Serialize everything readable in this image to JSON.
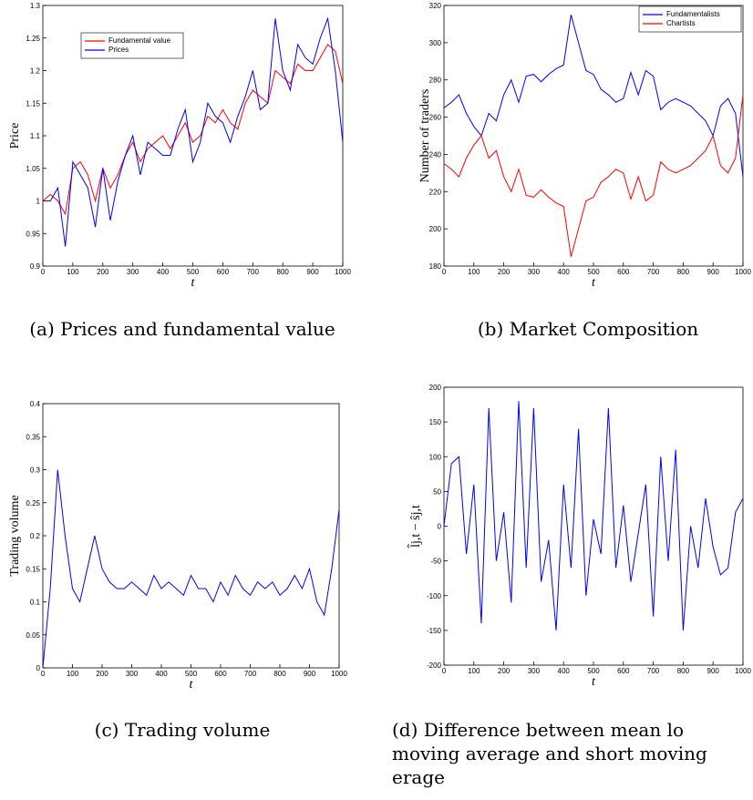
{
  "chart_data": [
    {
      "type": "line",
      "caption": "(a) Prices and fundamental value",
      "xlabel": "t",
      "ylabel": "Price",
      "x": [
        0,
        25,
        50,
        75,
        100,
        125,
        150,
        175,
        200,
        225,
        250,
        275,
        300,
        325,
        350,
        375,
        400,
        425,
        450,
        475,
        500,
        525,
        550,
        575,
        600,
        625,
        650,
        675,
        700,
        725,
        750,
        775,
        800,
        825,
        850,
        875,
        900,
        925,
        950,
        975,
        1000
      ],
      "series": [
        {
          "name": "Fundamental value",
          "color": "#ff0000",
          "values": [
            1.0,
            1.01,
            1.0,
            0.98,
            1.05,
            1.06,
            1.04,
            1.0,
            1.05,
            1.02,
            1.04,
            1.07,
            1.09,
            1.06,
            1.08,
            1.09,
            1.1,
            1.08,
            1.1,
            1.12,
            1.09,
            1.1,
            1.13,
            1.12,
            1.14,
            1.12,
            1.11,
            1.15,
            1.17,
            1.16,
            1.15,
            1.2,
            1.19,
            1.18,
            1.21,
            1.2,
            1.2,
            1.22,
            1.24,
            1.23,
            1.18
          ]
        },
        {
          "name": "Prices",
          "color": "#0000ff",
          "values": [
            1.0,
            1.0,
            1.02,
            0.93,
            1.06,
            1.04,
            1.02,
            0.96,
            1.05,
            0.97,
            1.03,
            1.07,
            1.1,
            1.04,
            1.09,
            1.08,
            1.07,
            1.07,
            1.11,
            1.14,
            1.06,
            1.09,
            1.15,
            1.13,
            1.12,
            1.09,
            1.13,
            1.16,
            1.2,
            1.14,
            1.15,
            1.28,
            1.2,
            1.17,
            1.24,
            1.22,
            1.21,
            1.25,
            1.28,
            1.2,
            1.09
          ]
        }
      ],
      "legend": "upper-left",
      "xlim": [
        0,
        1000
      ],
      "xticks": [
        0,
        100,
        200,
        300,
        400,
        500,
        600,
        700,
        800,
        900,
        1000
      ],
      "ylim": [
        0.9,
        1.3
      ],
      "yticks": [
        0.9,
        0.95,
        1,
        1.05,
        1.1,
        1.15,
        1.2,
        1.25,
        1.3
      ]
    },
    {
      "type": "line",
      "caption": "(b) Market Composition",
      "xlabel": "t",
      "ylabel": "Number of traders",
      "x": [
        0,
        25,
        50,
        75,
        100,
        125,
        150,
        175,
        200,
        225,
        250,
        275,
        300,
        325,
        350,
        375,
        400,
        425,
        450,
        475,
        500,
        525,
        550,
        575,
        600,
        625,
        650,
        675,
        700,
        725,
        750,
        775,
        800,
        825,
        850,
        875,
        900,
        925,
        950,
        975,
        1000
      ],
      "series": [
        {
          "name": "Fundamentalists",
          "color": "#0000ff",
          "values": [
            265,
            268,
            272,
            262,
            255,
            250,
            262,
            258,
            272,
            280,
            268,
            282,
            283,
            279,
            283,
            286,
            288,
            315,
            300,
            285,
            283,
            275,
            272,
            268,
            270,
            284,
            272,
            285,
            282,
            264,
            268,
            270,
            268,
            266,
            262,
            258,
            250,
            266,
            270,
            262,
            228
          ]
        },
        {
          "name": "Chartists",
          "color": "#ff0000",
          "values": [
            235,
            232,
            228,
            238,
            245,
            250,
            238,
            242,
            228,
            220,
            232,
            218,
            217,
            221,
            217,
            214,
            212,
            185,
            200,
            215,
            217,
            225,
            228,
            232,
            230,
            216,
            228,
            215,
            218,
            236,
            232,
            230,
            232,
            234,
            238,
            242,
            250,
            234,
            230,
            238,
            272
          ]
        }
      ],
      "legend": "upper-right",
      "xlim": [
        0,
        1000
      ],
      "xticks": [
        0,
        100,
        200,
        300,
        400,
        500,
        600,
        700,
        800,
        900,
        1000
      ],
      "ylim": [
        180,
        320
      ],
      "yticks": [
        180,
        200,
        220,
        240,
        260,
        280,
        300,
        320
      ]
    },
    {
      "type": "line",
      "caption": "(c) Trading volume",
      "xlabel": "t",
      "ylabel": "Trading volume",
      "x": [
        0,
        25,
        50,
        75,
        100,
        125,
        150,
        175,
        200,
        225,
        250,
        275,
        300,
        325,
        350,
        375,
        400,
        425,
        450,
        475,
        500,
        525,
        550,
        575,
        600,
        625,
        650,
        675,
        700,
        725,
        750,
        775,
        800,
        825,
        850,
        875,
        900,
        925,
        950,
        975,
        1000
      ],
      "series": [
        {
          "color": "#0000ff",
          "values": [
            0.0,
            0.12,
            0.3,
            0.2,
            0.12,
            0.1,
            0.15,
            0.2,
            0.15,
            0.13,
            0.12,
            0.12,
            0.13,
            0.12,
            0.11,
            0.14,
            0.12,
            0.13,
            0.12,
            0.11,
            0.14,
            0.12,
            0.12,
            0.1,
            0.13,
            0.11,
            0.14,
            0.12,
            0.11,
            0.13,
            0.12,
            0.13,
            0.11,
            0.12,
            0.14,
            0.12,
            0.15,
            0.1,
            0.08,
            0.15,
            0.24
          ]
        }
      ],
      "xlim": [
        0,
        1000
      ],
      "xticks": [
        0,
        100,
        200,
        300,
        400,
        500,
        600,
        700,
        800,
        900,
        1000
      ],
      "ylim": [
        0,
        0.4
      ],
      "yticks": [
        0,
        0.05,
        0.1,
        0.15,
        0.2,
        0.25,
        0.3,
        0.35,
        0.4
      ]
    },
    {
      "type": "line",
      "caption": [
        "(d) Difference between mean lo",
        "moving average and short moving",
        "erage"
      ],
      "xlabel": "t",
      "ylabel": "l̂j,t − ŝj,t",
      "x": [
        0,
        25,
        50,
        75,
        100,
        125,
        150,
        175,
        200,
        225,
        250,
        275,
        300,
        325,
        350,
        375,
        400,
        425,
        450,
        475,
        500,
        525,
        550,
        575,
        600,
        625,
        650,
        675,
        700,
        725,
        750,
        775,
        800,
        825,
        850,
        875,
        900,
        925,
        950,
        975,
        1000
      ],
      "series": [
        {
          "color": "#0000ff",
          "values": [
            0,
            90,
            100,
            -40,
            60,
            -140,
            170,
            -50,
            20,
            -110,
            180,
            -60,
            170,
            -80,
            -20,
            -150,
            60,
            -60,
            140,
            -100,
            10,
            -40,
            170,
            -60,
            30,
            -80,
            -10,
            60,
            -130,
            100,
            -50,
            110,
            -150,
            0,
            -60,
            40,
            -30,
            -70,
            -60,
            20,
            40
          ]
        }
      ],
      "xlim": [
        0,
        1000
      ],
      "xticks": [
        0,
        100,
        200,
        300,
        400,
        500,
        600,
        700,
        800,
        900,
        1000
      ],
      "ylim": [
        -200,
        200
      ],
      "yticks": [
        -200,
        -150,
        -100,
        -50,
        0,
        50,
        100,
        150,
        200
      ]
    }
  ]
}
